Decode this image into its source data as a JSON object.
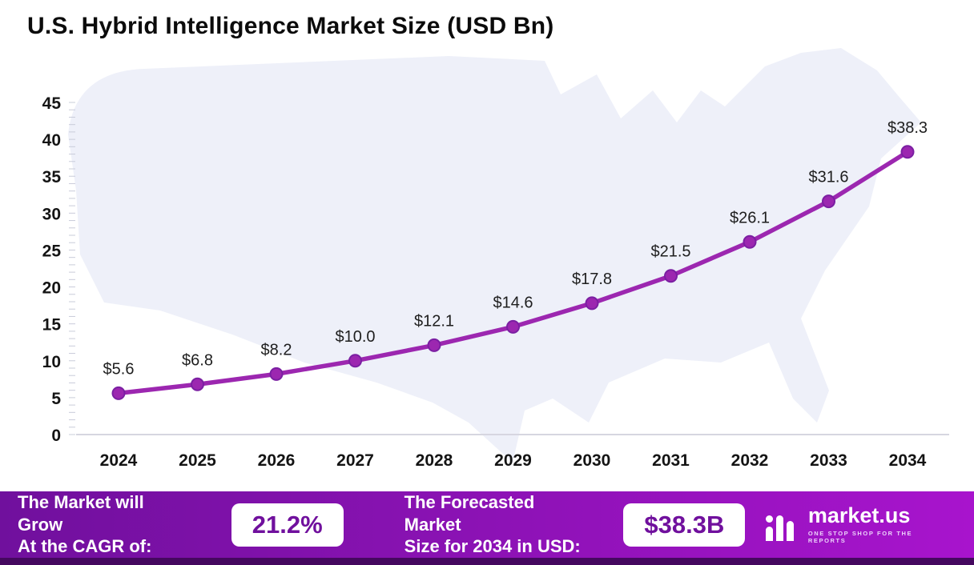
{
  "title": "U.S. Hybrid Intelligence Market Size (USD Bn)",
  "chart_data": {
    "type": "line",
    "title": "U.S. Hybrid Intelligence Market Size (USD Bn)",
    "x": [
      "2024",
      "2025",
      "2026",
      "2027",
      "2028",
      "2029",
      "2030",
      "2031",
      "2032",
      "2033",
      "2034"
    ],
    "values": [
      5.6,
      6.8,
      8.2,
      10.0,
      12.1,
      14.6,
      17.8,
      21.5,
      26.1,
      31.6,
      38.3
    ],
    "point_labels": [
      "$5.6",
      "$6.8",
      "$8.2",
      "$10.0",
      "$12.1",
      "$14.6",
      "$17.8",
      "$21.5",
      "$26.1",
      "$31.6",
      "$38.3"
    ],
    "ylim": [
      0,
      45
    ],
    "yticks": [
      0,
      5,
      10,
      15,
      20,
      25,
      30,
      35,
      40,
      45
    ],
    "xlabel": "",
    "ylabel": "",
    "grid": false,
    "legend": "none",
    "line_color": "#9c27b0",
    "marker_stroke": "#7b1fa2",
    "background_map_color": "#eef0f9"
  },
  "footer": {
    "cagr_label_line1": "The Market will Grow",
    "cagr_label_line2": "At the CAGR of:",
    "cagr_value": "21.2%",
    "forecast_label_line1": "The Forecasted Market",
    "forecast_label_line2": "Size for 2034 in USD:",
    "forecast_value": "$38.3B",
    "logo_name": "market.us",
    "logo_tagline": "ONE STOP SHOP FOR THE REPORTS",
    "background_gradient": [
      "#70109d",
      "#a814cd"
    ],
    "value_text_color": "#70109d"
  }
}
